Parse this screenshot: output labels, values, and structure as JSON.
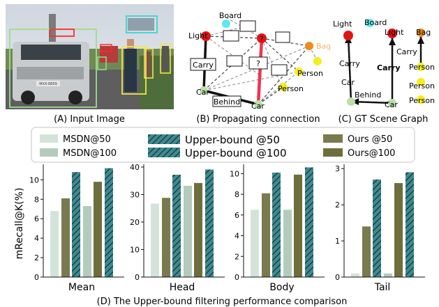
{
  "panels": {
    "a_caption": "(A) Input Image",
    "b_caption": "(B) Propagating connection",
    "c_caption": "(C) GT Scene Graph",
    "d_caption": "(D) The Upper-bound filtering performance comparison"
  },
  "photo": {
    "plate_text": "MXX-6859"
  },
  "graph_b": {
    "nodes": {
      "board": "Board",
      "light": "Light",
      "bag": "Bag",
      "person1": "Person",
      "person2": "Person",
      "car1": "Car",
      "car2": "Car"
    },
    "edge_labels": {
      "carry": "Carry",
      "behind": "Behind",
      "unknown": "?"
    }
  },
  "graph_c": {
    "nodes": {
      "light1": "Light",
      "board": "Board",
      "light2": "Light",
      "bag": "Bag",
      "car1": "Car",
      "car2": "Car",
      "person1": "Person",
      "person2": "Person",
      "person3": "Person"
    },
    "edge_labels": {
      "carry1": "Carry",
      "carry2": "Carry",
      "carry3": "Carry",
      "behind": "Behind"
    }
  },
  "legend": [
    {
      "label": "MSDN@50",
      "color": "#d3e3d9",
      "hatch": false
    },
    {
      "label": "MSDN@100",
      "color": "#b3cbbd",
      "hatch": false
    },
    {
      "label": "Upper-bound @50",
      "color": "#4a8f93",
      "hatch": true
    },
    {
      "label": "Upper-bound @100",
      "color": "#2f7f86",
      "hatch": true
    },
    {
      "label": "Ours @50",
      "color": "#7a7a4f",
      "hatch": false
    },
    {
      "label": "Ours@100",
      "color": "#6e6e3c",
      "hatch": false
    }
  ],
  "chart_data": [
    {
      "type": "bar",
      "xlabel": "Mean",
      "ylabel": "mRecall@K(%)",
      "ylim": [
        0,
        11.6
      ],
      "yticks": [
        0,
        2,
        4,
        6,
        8,
        10
      ],
      "ytick_labels": [
        "0",
        "2",
        "4",
        "6",
        "8",
        "10"
      ],
      "series": [
        {
          "name": "MSDN@50",
          "values": [
            6.8
          ]
        },
        {
          "name": "Ours @50",
          "values": [
            8.1
          ]
        },
        {
          "name": "Upper-bound @50",
          "values": [
            10.8
          ]
        },
        {
          "name": "MSDN@100",
          "values": [
            7.3
          ]
        },
        {
          "name": "Ours@100",
          "values": [
            9.8
          ]
        },
        {
          "name": "Upper-bound @100",
          "values": [
            11.2
          ]
        }
      ]
    },
    {
      "type": "bar",
      "xlabel": "Head",
      "ylabel": "",
      "ylim": [
        0,
        41
      ],
      "yticks": [
        0,
        10,
        20,
        30,
        40
      ],
      "ytick_labels": [
        "0",
        "10",
        "20",
        "30",
        "40"
      ],
      "series": [
        {
          "name": "MSDN@50",
          "values": [
            26.7
          ]
        },
        {
          "name": "Ours @50",
          "values": [
            28.8
          ]
        },
        {
          "name": "Upper-bound @50",
          "values": [
            37.2
          ]
        },
        {
          "name": "MSDN@100",
          "values": [
            33.2
          ]
        },
        {
          "name": "Ours@100",
          "values": [
            34.2
          ]
        },
        {
          "name": "Upper-bound @100",
          "values": [
            39.1
          ]
        }
      ]
    },
    {
      "type": "bar",
      "xlabel": "Body",
      "ylabel": "",
      "ylim": [
        0,
        10.9
      ],
      "yticks": [
        0,
        2,
        4,
        6,
        8,
        10
      ],
      "ytick_labels": [
        "0",
        "2",
        "4",
        "6",
        "8",
        "10"
      ],
      "series": [
        {
          "name": "MSDN@50",
          "values": [
            6.5
          ]
        },
        {
          "name": "Ours @50",
          "values": [
            8.1
          ]
        },
        {
          "name": "Upper-bound @50",
          "values": [
            10.1
          ]
        },
        {
          "name": "MSDN@100",
          "values": [
            6.5
          ]
        },
        {
          "name": "Ours@100",
          "values": [
            9.9
          ]
        },
        {
          "name": "Upper-bound @100",
          "values": [
            10.6
          ]
        }
      ]
    },
    {
      "type": "bar",
      "xlabel": "Tail",
      "ylabel": "",
      "ylim": [
        0,
        3.12
      ],
      "yticks": [
        0,
        1,
        2,
        3
      ],
      "ytick_labels": [
        "0",
        "1",
        "2",
        "3"
      ],
      "series": [
        {
          "name": "MSDN@50",
          "values": [
            0.1
          ]
        },
        {
          "name": "Ours @50",
          "values": [
            1.4
          ]
        },
        {
          "name": "Upper-bound @50",
          "values": [
            2.7
          ]
        },
        {
          "name": "MSDN@100",
          "values": [
            0.1
          ]
        },
        {
          "name": "Ours@100",
          "values": [
            2.6
          ]
        },
        {
          "name": "Upper-bound @100",
          "values": [
            2.9
          ]
        }
      ]
    }
  ]
}
